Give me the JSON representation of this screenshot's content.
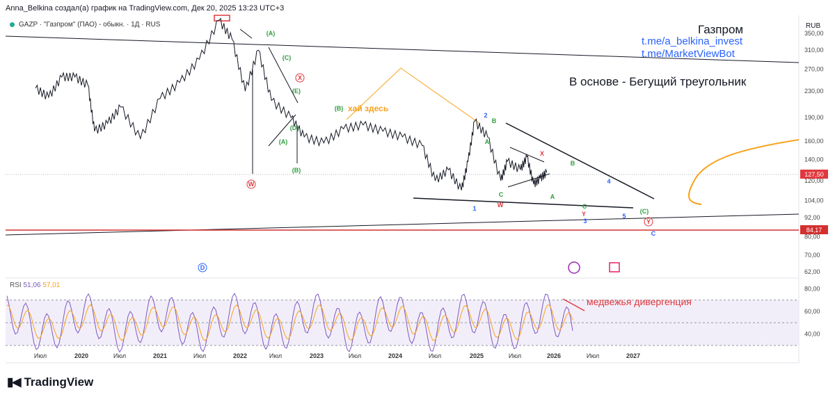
{
  "header": {
    "attribution": "Anna_Belkina создал(а) график на TradingView.com, Дек 20, 2025 13:23 UTC+3",
    "symbol": "GAZP · \"Газпром\" (ПАО) - обыкн. · 1Д · RUS",
    "currency": "RUB"
  },
  "annotations": {
    "title": "Газпром",
    "link1": "t.me/a_belkina_invest",
    "link2": "t.me/MarketViewBot",
    "note": "В основе - Бегущий треугольник",
    "hi_here": "хай здесь",
    "bear_div": "медвежья дивергенция"
  },
  "waves": [
    {
      "t": "(A)",
      "c": "#2e9e3e"
    },
    {
      "t": "(C)",
      "c": "#2e9e3e"
    },
    {
      "t": "X",
      "c": "#e0383e"
    },
    {
      "t": "(E)",
      "c": "#2e9e3e"
    },
    {
      "t": "(D)",
      "c": "#2e9e3e"
    },
    {
      "t": "(B)",
      "c": "#2e9e3e"
    },
    {
      "t": "(A)",
      "c": "#2e9e3e"
    },
    {
      "t": "W",
      "c": "#e0383e"
    },
    {
      "t": "(B)",
      "c": "#2e9e3e"
    },
    {
      "t": "2",
      "c": "#2962ff"
    },
    {
      "t": "B",
      "c": "#2e9e3e"
    },
    {
      "t": "A",
      "c": "#2e9e3e"
    },
    {
      "t": "C",
      "c": "#2e9e3e"
    },
    {
      "t": "W",
      "c": "#e0383e"
    },
    {
      "t": "1",
      "c": "#2962ff"
    },
    {
      "t": "X",
      "c": "#e0383e"
    },
    {
      "t": "B",
      "c": "#2e9e3e"
    },
    {
      "t": "A",
      "c": "#2e9e3e"
    },
    {
      "t": "4",
      "c": "#2962ff"
    },
    {
      "t": "C",
      "c": "#2e9e3e"
    },
    {
      "t": "Y",
      "c": "#e0383e"
    },
    {
      "t": "3",
      "c": "#2962ff"
    },
    {
      "t": "5",
      "c": "#2962ff"
    },
    {
      "t": "(C)",
      "c": "#2e9e3e"
    },
    {
      "t": "Y",
      "c": "#e0383e"
    },
    {
      "t": "C",
      "c": "#2962ff"
    },
    {
      "t": "D",
      "c": "#2962ff"
    }
  ],
  "price_tags": {
    "last": "127,50",
    "level": "84,17"
  },
  "rsi": {
    "label": "RSI",
    "value1": "51,06",
    "value2": "57,01"
  },
  "logo": "TradingView",
  "chart_data": {
    "type": "line",
    "title": "",
    "y_scale": "log",
    "y_ticks": [
      "350,00",
      "310,00",
      "270,00",
      "230,00",
      "190,00",
      "160,00",
      "140,00",
      "120,00",
      "104,00",
      "92,00",
      "80,00",
      "70,00",
      "62,00"
    ],
    "y_tick_values": [
      350,
      310,
      270,
      230,
      190,
      160,
      140,
      120,
      104,
      92,
      80,
      70,
      62
    ],
    "x_ticks": [
      "Июл",
      "2020",
      "Июл",
      "2021",
      "Июл",
      "2022",
      "Июл",
      "2023",
      "Июл",
      "2024",
      "Июл",
      "2025",
      "Июл",
      "2026",
      "Июл",
      "2027"
    ],
    "series": [
      {
        "values": [
          {
            "x": "2019-06",
            "y": 235
          },
          {
            "x": "2019-08",
            "y": 220
          },
          {
            "x": "2019-10",
            "y": 255
          },
          {
            "x": "2019-12",
            "y": 255
          },
          {
            "x": "2020-02",
            "y": 240
          },
          {
            "x": "2020-03",
            "y": 172
          },
          {
            "x": "2020-05",
            "y": 182
          },
          {
            "x": "2020-07",
            "y": 205
          },
          {
            "x": "2020-10",
            "y": 163
          },
          {
            "x": "2021-01",
            "y": 218
          },
          {
            "x": "2021-04",
            "y": 245
          },
          {
            "x": "2021-07",
            "y": 290
          },
          {
            "x": "2021-10",
            "y": 385
          },
          {
            "x": "2021-12",
            "y": 335
          },
          {
            "x": "2022-02",
            "y": 230
          },
          {
            "x": "2022-04",
            "y": 310
          },
          {
            "x": "2022-06",
            "y": 215
          },
          {
            "x": "2022-09",
            "y": 190
          },
          {
            "x": "2022-11",
            "y": 165
          },
          {
            "x": "2023-02",
            "y": 158
          },
          {
            "x": "2023-05",
            "y": 175
          },
          {
            "x": "2023-08",
            "y": 180
          },
          {
            "x": "2023-11",
            "y": 172
          },
          {
            "x": "2024-02",
            "y": 165
          },
          {
            "x": "2024-05",
            "y": 155
          },
          {
            "x": "2024-07",
            "y": 120
          },
          {
            "x": "2024-09",
            "y": 130
          },
          {
            "x": "2024-11",
            "y": 112
          },
          {
            "x": "2024-12",
            "y": 138
          },
          {
            "x": "2025-01",
            "y": 185
          },
          {
            "x": "2025-03",
            "y": 165
          },
          {
            "x": "2025-05",
            "y": 120
          },
          {
            "x": "2025-06",
            "y": 138
          },
          {
            "x": "2025-08",
            "y": 130
          },
          {
            "x": "2025-09",
            "y": 143
          },
          {
            "x": "2025-10",
            "y": 117
          },
          {
            "x": "2025-11",
            "y": 122
          },
          {
            "x": "2025-12",
            "y": 127.5
          }
        ]
      }
    ],
    "rsi_ticks": [
      "80,00",
      "60,00",
      "40,00"
    ],
    "rsi_tick_values": [
      80,
      60,
      40
    ],
    "rsi_bands": [
      70,
      50,
      30
    ],
    "colors": {
      "price": "#131722",
      "rsi": "#7e57c2",
      "rsi_ma": "#f7a21b",
      "wave_green": "#2e9e3e",
      "wave_red": "#e0383e",
      "wave_blue": "#2962ff",
      "orange": "#f7a21b",
      "red_line": "#d32f2f"
    }
  }
}
